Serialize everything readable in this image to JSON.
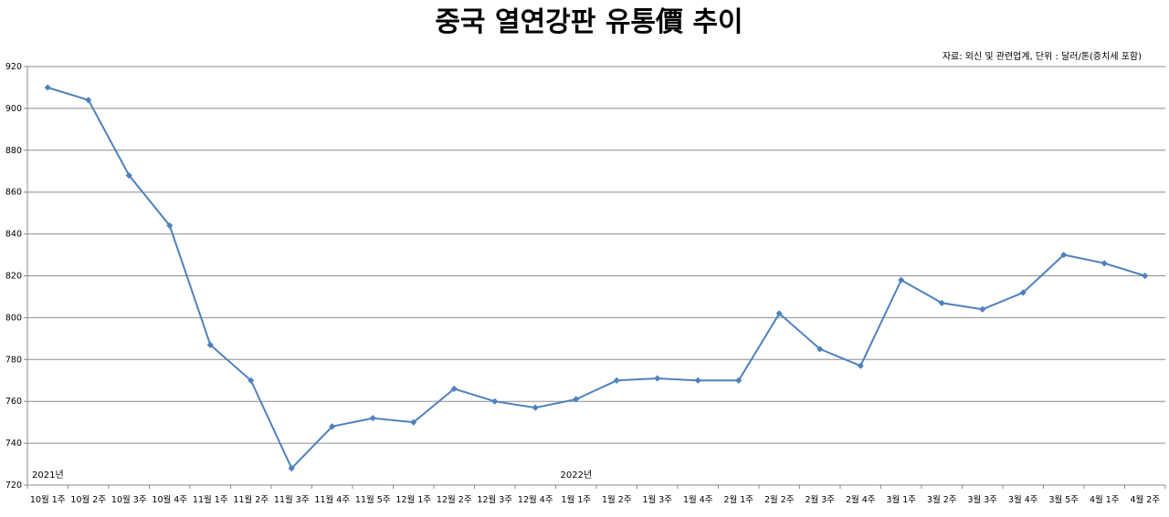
{
  "chart_data": {
    "type": "line",
    "title": "중국 열연강판 유통價 추이",
    "note": "자료: 외신 및 관련업계, 단위 : 달러/톤(증치세 포함)",
    "ylim": [
      720,
      920
    ],
    "yticks": [
      720,
      740,
      760,
      780,
      800,
      820,
      840,
      860,
      880,
      900,
      920
    ],
    "grid": true,
    "legend": "none",
    "color": "#4f81bd",
    "year_labels": [
      {
        "label": "2021년",
        "category_index": 0
      },
      {
        "label": "2022년",
        "category_index": 13
      }
    ],
    "categories": [
      "10월 1주",
      "10월 2주",
      "10월 3주",
      "10월 4주",
      "11월 1주",
      "11월 2주",
      "11월 3주",
      "11월 4주",
      "11월 5주",
      "12월 1주",
      "12월 2주",
      "12월 3주",
      "12월 4주",
      "1월 1주",
      "1월 2주",
      "1월 3주",
      "1월 4주",
      "2월 1주",
      "2월 2주",
      "2월 3주",
      "2월 4주",
      "3월 1주",
      "3월 2주",
      "3월 3주",
      "3월 4주",
      "3월 5주",
      "4월 1주",
      "4월 2주"
    ],
    "values": [
      910,
      904,
      868,
      844,
      787,
      770,
      728,
      748,
      752,
      750,
      766,
      760,
      757,
      761,
      770,
      771,
      770,
      770,
      802,
      785,
      777,
      818,
      807,
      804,
      812,
      830,
      826,
      820
    ]
  }
}
